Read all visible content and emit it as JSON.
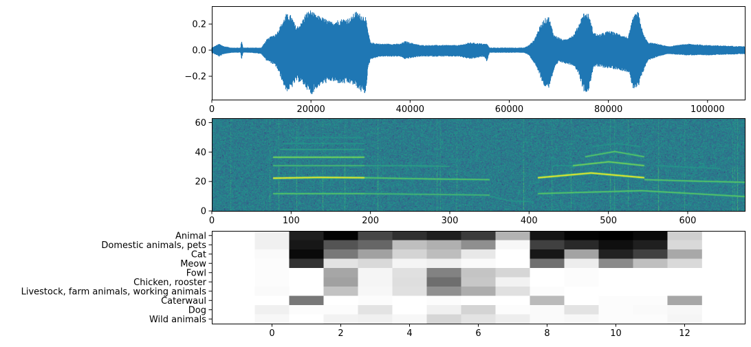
{
  "chart_data": [
    {
      "type": "line",
      "panel": "waveform",
      "color": "#1f77b4",
      "xlim": [
        0,
        107520
      ],
      "ylim": [
        -0.379,
        0.337
      ],
      "xticks": [
        0,
        20000,
        40000,
        60000,
        80000,
        100000
      ],
      "xtick_labels": [
        "0",
        "20000",
        "40000",
        "60000",
        "80000",
        "100000"
      ],
      "yticks": [
        -0.2,
        0.0,
        0.2
      ],
      "ytick_labels": [
        "−0.2",
        "0.0",
        "0.2"
      ],
      "envelope_columns": [
        "sample",
        "upper",
        "lower"
      ],
      "envelope": [
        [
          0,
          0.02,
          -0.02
        ],
        [
          1500,
          0.05,
          -0.05
        ],
        [
          2500,
          0.03,
          -0.03
        ],
        [
          4000,
          0.02,
          -0.02
        ],
        [
          5800,
          0.02,
          -0.02
        ],
        [
          6000,
          0.08,
          -0.07
        ],
        [
          6300,
          0.02,
          -0.02
        ],
        [
          8000,
          0.02,
          -0.02
        ],
        [
          10000,
          0.02,
          -0.03
        ],
        [
          11000,
          0.08,
          -0.08
        ],
        [
          12000,
          0.11,
          -0.1
        ],
        [
          13000,
          0.13,
          -0.13
        ],
        [
          14000,
          0.2,
          -0.22
        ],
        [
          15000,
          0.28,
          -0.32
        ],
        [
          16000,
          0.27,
          -0.3
        ],
        [
          17000,
          0.18,
          -0.24
        ],
        [
          18000,
          0.21,
          -0.25
        ],
        [
          19000,
          0.29,
          -0.29
        ],
        [
          20000,
          0.31,
          -0.35
        ],
        [
          21000,
          0.27,
          -0.3
        ],
        [
          22000,
          0.26,
          -0.27
        ],
        [
          24000,
          0.22,
          -0.24
        ],
        [
          26000,
          0.24,
          -0.26
        ],
        [
          28000,
          0.25,
          -0.26
        ],
        [
          29000,
          0.3,
          -0.28
        ],
        [
          30000,
          0.28,
          -0.32
        ],
        [
          31000,
          0.26,
          -0.34
        ],
        [
          31500,
          0.15,
          -0.15
        ],
        [
          32000,
          0.06,
          -0.07
        ],
        [
          34000,
          0.05,
          -0.05
        ],
        [
          38000,
          0.05,
          -0.05
        ],
        [
          39000,
          0.07,
          -0.07
        ],
        [
          42000,
          0.04,
          -0.05
        ],
        [
          50000,
          0.04,
          -0.05
        ],
        [
          52000,
          0.06,
          -0.07
        ],
        [
          55000,
          0.05,
          -0.05
        ],
        [
          55500,
          0.05,
          -0.09
        ],
        [
          56000,
          0.02,
          -0.02
        ],
        [
          63000,
          0.02,
          -0.02
        ],
        [
          64000,
          0.04,
          -0.04
        ],
        [
          65000,
          0.08,
          -0.1
        ],
        [
          66000,
          0.17,
          -0.18
        ],
        [
          67000,
          0.24,
          -0.28
        ],
        [
          68000,
          0.26,
          -0.29
        ],
        [
          69000,
          0.12,
          -0.16
        ],
        [
          70000,
          0.1,
          -0.09
        ],
        [
          71000,
          0.08,
          -0.1
        ],
        [
          73000,
          0.12,
          -0.12
        ],
        [
          74000,
          0.2,
          -0.18
        ],
        [
          75000,
          0.29,
          -0.32
        ],
        [
          76000,
          0.28,
          -0.32
        ],
        [
          77000,
          0.14,
          -0.13
        ],
        [
          78000,
          0.12,
          -0.13
        ],
        [
          80000,
          0.15,
          -0.14
        ],
        [
          82000,
          0.13,
          -0.15
        ],
        [
          84000,
          0.1,
          -0.17
        ],
        [
          85000,
          0.26,
          -0.3
        ],
        [
          86000,
          0.3,
          -0.3
        ],
        [
          87000,
          0.13,
          -0.17
        ],
        [
          88000,
          0.06,
          -0.08
        ],
        [
          90000,
          0.05,
          -0.05
        ],
        [
          92000,
          0.03,
          -0.03
        ],
        [
          96000,
          0.05,
          -0.04
        ],
        [
          100000,
          0.04,
          -0.04
        ],
        [
          107520,
          0.03,
          -0.03
        ]
      ]
    },
    {
      "type": "heatmap",
      "panel": "spectrogram",
      "colormap": "viridis",
      "xlim": [
        0,
        672
      ],
      "ylim": [
        0,
        63
      ],
      "xticks": [
        0,
        100,
        200,
        300,
        400,
        500,
        600
      ],
      "xtick_labels": [
        "0",
        "100",
        "200",
        "300",
        "400",
        "500",
        "600"
      ],
      "yticks": [
        0,
        20,
        40,
        60
      ],
      "ytick_labels": [
        "0",
        "20",
        "40",
        "60"
      ],
      "harmonic_tracks_columns": [
        "frame_start",
        "frame_end",
        "bin_start",
        "bin_mid",
        "bin_end",
        "level"
      ],
      "harmonic_tracks": [
        [
          77,
          192,
          12,
          12,
          12,
          0.72
        ],
        [
          77,
          192,
          22.5,
          23,
          22.8,
          1.0
        ],
        [
          77,
          192,
          31,
          31,
          31,
          0.66
        ],
        [
          77,
          192,
          36.7,
          36.7,
          36.7,
          0.8
        ],
        [
          85,
          192,
          42,
          42,
          42,
          0.55
        ],
        [
          90,
          192,
          46,
          46,
          46,
          0.5
        ],
        [
          100,
          190,
          50,
          50,
          50,
          0.48
        ],
        [
          192,
          350,
          22.8,
          22,
          21.5,
          0.72
        ],
        [
          192,
          350,
          12,
          11.5,
          11,
          0.66
        ],
        [
          192,
          300,
          31,
          31,
          30.5,
          0.55
        ],
        [
          346,
          405,
          11,
          7,
          6.5,
          0.5
        ],
        [
          411,
          545,
          22.8,
          26,
          22.8,
          1.0
        ],
        [
          545,
          672,
          21.5,
          20.5,
          19.7,
          0.72
        ],
        [
          411,
          672,
          12,
          14,
          10,
          0.72
        ],
        [
          455,
          545,
          31,
          33.6,
          31,
          0.78
        ],
        [
          470,
          545,
          37,
          40.6,
          37,
          0.72
        ],
        [
          430,
          470,
          31,
          31,
          31,
          0.5
        ],
        [
          480,
          540,
          44,
          46,
          44,
          0.5
        ],
        [
          560,
          640,
          31,
          30,
          29,
          0.5
        ]
      ]
    },
    {
      "type": "heatmap",
      "panel": "class-scores",
      "colormap": "gray_r",
      "xlim": [
        -1.75,
        13.75
      ],
      "xticks": [
        0,
        2,
        4,
        6,
        8,
        10,
        12
      ],
      "xtick_labels": [
        "0",
        "2",
        "4",
        "6",
        "8",
        "10",
        "12"
      ],
      "row_labels": [
        "Animal",
        "Domestic animals, pets",
        "Cat",
        "Meow",
        "Fowl",
        "Chicken, rooster",
        "Livestock, farm animals, working animals",
        "Caterwaul",
        "Dog",
        "Wild animals"
      ],
      "values": [
        [
          0.06,
          0.88,
          0.99,
          0.72,
          0.81,
          0.88,
          0.77,
          0.3,
          0.92,
          0.99,
          1.0,
          0.96,
          0.19
        ],
        [
          0.06,
          0.91,
          0.67,
          0.6,
          0.25,
          0.31,
          0.44,
          0.03,
          0.75,
          0.84,
          0.94,
          0.88,
          0.15
        ],
        [
          0.02,
          0.96,
          0.53,
          0.37,
          0.17,
          0.26,
          0.09,
          0.0,
          0.91,
          0.36,
          0.87,
          0.75,
          0.34
        ],
        [
          0.01,
          0.8,
          0.11,
          0.15,
          0.04,
          0.06,
          0.02,
          0.0,
          0.56,
          0.07,
          0.46,
          0.25,
          0.15
        ],
        [
          0.01,
          0.0,
          0.35,
          0.04,
          0.12,
          0.49,
          0.23,
          0.16,
          0.0,
          0.01,
          0.0,
          0.0,
          0.0
        ],
        [
          0.01,
          0.0,
          0.37,
          0.04,
          0.13,
          0.57,
          0.22,
          0.05,
          0.0,
          0.01,
          0.0,
          0.0,
          0.0
        ],
        [
          0.02,
          0.0,
          0.24,
          0.03,
          0.12,
          0.44,
          0.32,
          0.12,
          0.01,
          0.0,
          0.0,
          0.0,
          0.0
        ],
        [
          0.0,
          0.53,
          0.0,
          0.01,
          0.0,
          0.01,
          0.0,
          0.0,
          0.27,
          0.0,
          0.01,
          0.01,
          0.35
        ],
        [
          0.06,
          0.01,
          0.01,
          0.11,
          0.0,
          0.06,
          0.17,
          0.01,
          0.02,
          0.11,
          0.01,
          0.02,
          0.03
        ],
        [
          0.03,
          0.0,
          0.05,
          0.06,
          0.03,
          0.16,
          0.11,
          0.07,
          0.02,
          0.03,
          0.01,
          0.01,
          0.04
        ]
      ]
    }
  ]
}
